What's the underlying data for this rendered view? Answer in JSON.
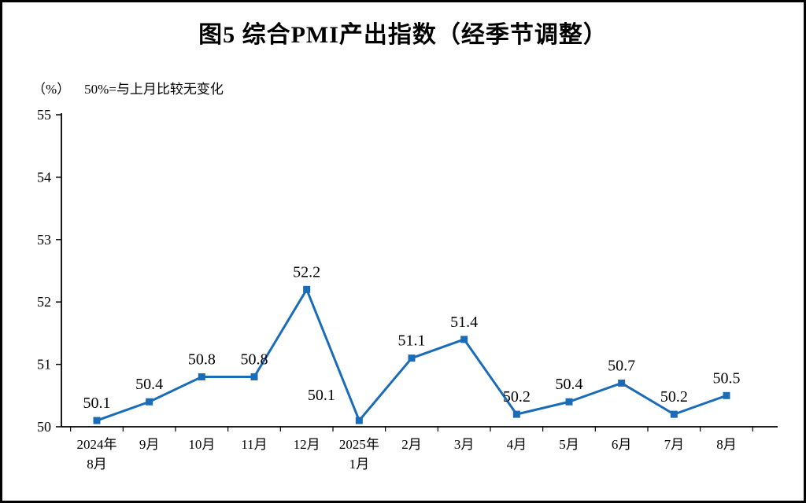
{
  "figure": {
    "title": "图5  综合PMI产出指数（经季节调整）",
    "unit_note": "（%）",
    "baseline_note": "50%=与上月比较无变化"
  },
  "chart_data": {
    "type": "line",
    "title": "图5  综合PMI产出指数（经季节调整）",
    "subtitle": "（%） 50%=与上月比较无变化",
    "categories": [
      "2024年\n8月",
      "9月",
      "10月",
      "11月",
      "12月",
      "2025年\n1月",
      "2月",
      "3月",
      "4月",
      "5月",
      "6月",
      "7月",
      "8月"
    ],
    "values": [
      50.1,
      50.4,
      50.8,
      50.8,
      52.2,
      50.1,
      51.1,
      51.4,
      50.2,
      50.4,
      50.7,
      50.2,
      50.5
    ],
    "xlabel": "",
    "ylabel": "%",
    "ylim": [
      50,
      55
    ],
    "ytick_step": 1,
    "yticks": [
      50,
      51,
      52,
      53,
      54,
      55
    ],
    "grid": false,
    "legend": "none",
    "line_color": "#1a6cb8",
    "marker": "square",
    "data_labels": true,
    "label_offsets": {
      "5": [
        -48,
        -10
      ]
    }
  }
}
